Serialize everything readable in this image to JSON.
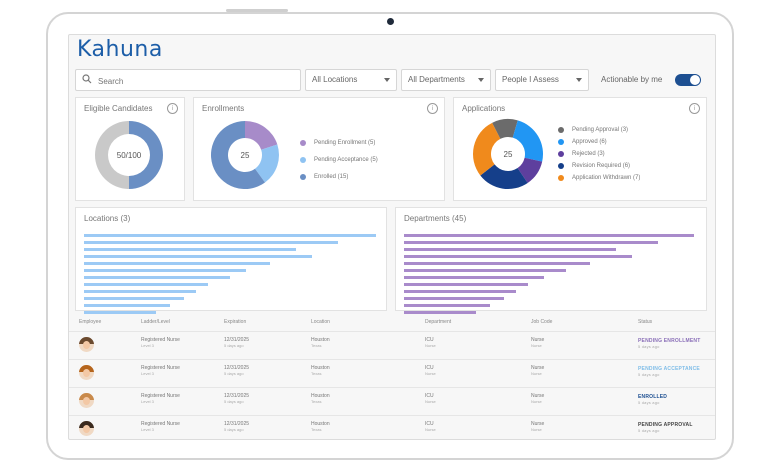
{
  "brand": {
    "logo": "Kahuna"
  },
  "toolbar": {
    "search_placeholder": "Search",
    "filters": [
      "All Locations",
      "All Departments",
      "People I Assess"
    ],
    "actionable_label": "Actionable by me"
  },
  "cards": {
    "eligible": {
      "title": "Eligible Candidates",
      "center": "50/100",
      "value": 50,
      "total": 100,
      "colors": [
        "#6a8fc4",
        "#c9c9c9"
      ]
    },
    "enrollments": {
      "title": "Enrollments",
      "center": "25",
      "legend": [
        {
          "label": "Pending Enrollment (5)",
          "value": 5,
          "color": "#a78bc9"
        },
        {
          "label": "Pending Acceptance (5)",
          "value": 5,
          "color": "#8fc3f2"
        },
        {
          "label": "Enrolled (15)",
          "value": 15,
          "color": "#6a8fc4"
        }
      ]
    },
    "applications": {
      "title": "Applications",
      "center": "25",
      "legend": [
        {
          "label": "Pending Approval (3)",
          "value": 3,
          "color": "#6b6b6b"
        },
        {
          "label": "Approved (6)",
          "value": 6,
          "color": "#2196f3"
        },
        {
          "label": "Rejected (3)",
          "value": 3,
          "color": "#5e3f9e"
        },
        {
          "label": "Revision Required (6)",
          "value": 6,
          "color": "#153f8a"
        },
        {
          "label": "Application Withdrawn (7)",
          "value": 7,
          "color": "#f08a1c"
        }
      ]
    },
    "locations": {
      "title": "Locations (3)",
      "color": "#9ccaf5"
    },
    "departments": {
      "title": "Departments (45)",
      "color": "#a98bcb"
    }
  },
  "table": {
    "headers": [
      "Employee",
      "Ladder/Level",
      "Expiration",
      "Location",
      "Department",
      "Job Code",
      "Status"
    ],
    "rows": [
      {
        "ladder": "Registered Nurse",
        "level": "Level 3",
        "expiration": "12/31/2025",
        "exp_sub": "5 days ago",
        "location": "Houston",
        "loc_sub": "Texas",
        "department": "ICU",
        "dept_sub": "Nurse",
        "job": "Nurse",
        "job_sub": "Nurse",
        "status": "PENDING ENROLLMENT",
        "status_sub": "5 days ago",
        "status_color": "#8a6fb8",
        "hair": "#6b4a2f"
      },
      {
        "ladder": "Registered Nurse",
        "level": "Level 3",
        "expiration": "12/31/2025",
        "exp_sub": "5 days ago",
        "location": "Houston",
        "loc_sub": "Texas",
        "department": "ICU",
        "dept_sub": "Nurse",
        "job": "Nurse",
        "job_sub": "Nurse",
        "status": "PENDING ACCEPTANCE",
        "status_sub": "5 days ago",
        "status_color": "#7fbde8",
        "hair": "#b5651d"
      },
      {
        "ladder": "Registered Nurse",
        "level": "Level 3",
        "expiration": "12/31/2025",
        "exp_sub": "5 days ago",
        "location": "Houston",
        "loc_sub": "Texas",
        "department": "ICU",
        "dept_sub": "Nurse",
        "job": "Nurse",
        "job_sub": "Nurse",
        "status": "ENROLLED",
        "status_sub": "5 days ago",
        "status_color": "#1d4f91",
        "hair": "#c98a4b"
      },
      {
        "ladder": "Registered Nurse",
        "level": "Level 3",
        "expiration": "12/31/2025",
        "exp_sub": "5 days ago",
        "location": "Houston",
        "loc_sub": "Texas",
        "department": "ICU",
        "dept_sub": "Nurse",
        "job": "Nurse",
        "job_sub": "Nurse",
        "status": "PENDING APPROVAL",
        "status_sub": "5 days ago",
        "status_color": "#444444",
        "hair": "#3b2a1e"
      }
    ]
  }
}
